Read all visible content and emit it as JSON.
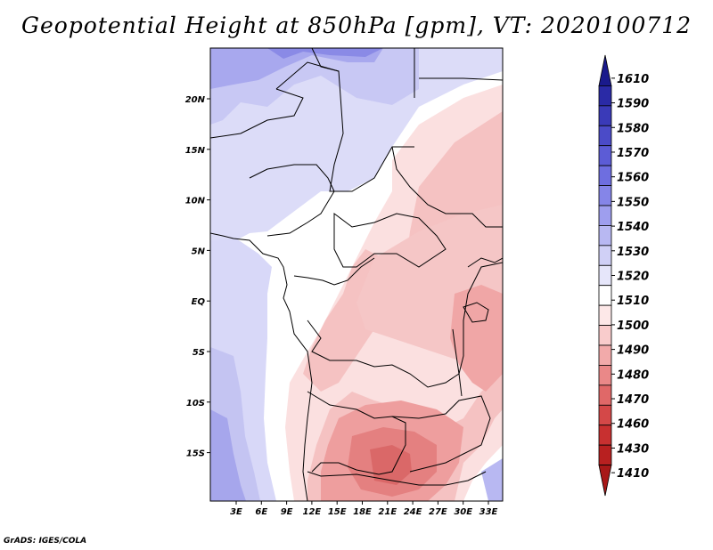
{
  "title": "Geopotential Height at 850hPa [gpm], VT: 2020100712",
  "footer": "GrADS: IGES/COLA",
  "map": {
    "lat_ticks": [
      "20N",
      "15N",
      "10N",
      "5N",
      "EQ",
      "5S",
      "10S",
      "15S"
    ],
    "lon_ticks": [
      "3E",
      "6E",
      "9E",
      "12E",
      "15E",
      "18E",
      "21E",
      "24E",
      "27E",
      "30E",
      "33E"
    ]
  },
  "colorbar": {
    "levels": [
      "1610",
      "1590",
      "1580",
      "1570",
      "1560",
      "1550",
      "1540",
      "1530",
      "1520",
      "1510",
      "1500",
      "1490",
      "1480",
      "1470",
      "1460",
      "1430",
      "1410"
    ],
    "colors": {
      "top": "#1a1a8c",
      "upper": [
        "#2a2aa6",
        "#3a3ab8",
        "#4b4bc8",
        "#5c5cd6",
        "#6e6ee0",
        "#8585e8",
        "#9e9eee",
        "#b8b8f2",
        "#d0d0f6",
        "#e6e6fa"
      ],
      "middle": "#ffffff",
      "lower": [
        "#fde8e8",
        "#f9cccc",
        "#f2aaaa",
        "#ea8888",
        "#e06868",
        "#d44848",
        "#c83030",
        "#b82020",
        "#a81818"
      ]
    }
  }
}
